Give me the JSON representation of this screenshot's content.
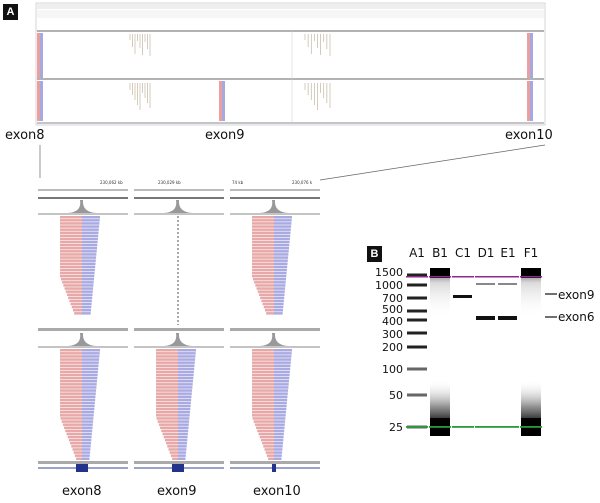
{
  "panel_a": {
    "label": "A",
    "overview_exons": [
      "exon8",
      "exon9",
      "exon10"
    ],
    "zoom_panels": [
      {
        "coord": "230,062 kb",
        "label": "exon8"
      },
      {
        "coord": "230,029 kb",
        "label": "exon9"
      },
      {
        "coord": "74 kb",
        "coord2": "230,076 k",
        "label": "exon10"
      }
    ]
  },
  "panel_b": {
    "label": "B",
    "lanes": [
      "A1",
      "B1",
      "C1",
      "D1",
      "E1",
      "F1"
    ],
    "ladder": [
      "1500",
      "1000",
      "700",
      "500",
      "400",
      "300",
      "200",
      "100",
      "50",
      "25"
    ],
    "annotations": [
      "exon9",
      "exon6"
    ],
    "colors": {
      "upper_marker": "#8a2a8a",
      "lower_marker": "#2a9a3a"
    }
  }
}
